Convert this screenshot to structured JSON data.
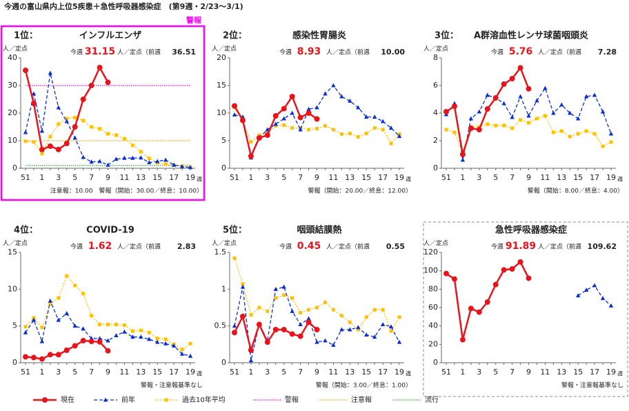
{
  "title": "今週の富山県内上位5疾患＋急性呼吸器感染症　(第9週・2/23～3/1)",
  "chart_data": [
    {
      "type": "line",
      "rank": "1位：",
      "title": "インフルエンザ",
      "status": "警報",
      "frame": "highlight",
      "this_week_label": "今週",
      "current": "31.15",
      "unit_note": "人／定点（前週",
      "previous": "36.51",
      "y_label": "人／定点",
      "x_unit": "週",
      "note": "注意報：10.00　警報（開始：30.00／終息：10.00）",
      "categories": [
        "51",
        null,
        "1",
        null,
        "3",
        null,
        "5",
        null,
        "7",
        null,
        "9",
        null,
        "11",
        null,
        "13",
        null,
        "15",
        null,
        "17",
        null,
        "19"
      ],
      "ylim": [
        0,
        40
      ],
      "yticks": [
        0,
        10,
        20,
        30,
        40
      ],
      "series": [
        {
          "name": "現在",
          "color": "#e8141b",
          "dash": "solid",
          "marker": "circle",
          "values": [
            35.5,
            23.5,
            6.8,
            8,
            6.8,
            9,
            15,
            25,
            30,
            36.51,
            31.15,
            null,
            null,
            null,
            null,
            null,
            null,
            null,
            null,
            null,
            null
          ]
        },
        {
          "name": "前年",
          "color": "#0a2fd0",
          "dash": "dashed",
          "marker": "triangle",
          "values": [
            13,
            27,
            13.5,
            34.5,
            22,
            17,
            11,
            4,
            2.3,
            2.5,
            1.2,
            3.3,
            3.7,
            3.7,
            3.8,
            2.1,
            2.5,
            3,
            1.2,
            0.6,
            0.3
          ]
        },
        {
          "name": "過去10年平均",
          "color": "#ffc000",
          "dash": "dotted",
          "marker": "square",
          "values": [
            9.8,
            9.5,
            5.3,
            11.5,
            16,
            18,
            18.4,
            17.3,
            15,
            14.3,
            12.5,
            12,
            10.7,
            8.3,
            6,
            3.6,
            2,
            1.5,
            1.2,
            0.8,
            0.4
          ]
        }
      ],
      "thresholds": [
        {
          "name": "警報",
          "value": 30,
          "color": "#ff00ff"
        },
        {
          "name": "注意報",
          "value": 10,
          "color": "#e0b000"
        },
        {
          "name": "流行",
          "value": 1,
          "color": "#33a02c"
        }
      ]
    },
    {
      "type": "line",
      "rank": "2位：",
      "title": "感染性胃腸炎",
      "this_week_label": "今週",
      "current": "8.93",
      "unit_note": "人／定点（前週",
      "previous": "10.00",
      "y_label": "人／定点",
      "x_unit": "週",
      "note": "警報（開始：20.00／終息：12.00）",
      "categories": [
        "51",
        null,
        "1",
        null,
        "3",
        null,
        "5",
        null,
        "7",
        null,
        "9",
        null,
        "11",
        null,
        "13",
        null,
        "15",
        null,
        "17",
        null,
        "19"
      ],
      "ylim": [
        0,
        20
      ],
      "yticks": [
        0,
        5,
        10,
        15,
        20
      ],
      "series": [
        {
          "name": "現在",
          "color": "#e8141b",
          "dash": "solid",
          "marker": "circle",
          "values": [
            11.3,
            8.7,
            2.2,
            5.5,
            6,
            9.5,
            10.8,
            13,
            9.2,
            10,
            8.93,
            null,
            null,
            null,
            null,
            null,
            null,
            null,
            null,
            null,
            null
          ]
        },
        {
          "name": "前年",
          "color": "#0a2fd0",
          "dash": "dashed",
          "marker": "triangle",
          "values": [
            9.7,
            9.3,
            1.9,
            5.5,
            7,
            8,
            9,
            10,
            7,
            10.7,
            11,
            13.5,
            15,
            13,
            12.2,
            11,
            9.3,
            9.3,
            8.5,
            7.3,
            5.8
          ]
        },
        {
          "name": "過去10年平均",
          "color": "#ffc000",
          "dash": "dotted",
          "marker": "square",
          "values": [
            11,
            8.5,
            4.8,
            6,
            6.5,
            7.7,
            7.8,
            7.3,
            7.3,
            7,
            7.2,
            7.7,
            7,
            6.2,
            6.3,
            5.7,
            6.3,
            7.3,
            7,
            4.5,
            6.2
          ]
        }
      ]
    },
    {
      "type": "line",
      "rank": "3位：",
      "title": "A群溶血性レンサ球菌咽頭炎",
      "this_week_label": "今週",
      "current": "5.76",
      "unit_note": "人／定点（前週",
      "previous": "7.28",
      "y_label": "人／定点",
      "x_unit": "週",
      "note": "警報（開始：8.00／終息：4.00）",
      "categories": [
        "51",
        null,
        "1",
        null,
        "3",
        null,
        "5",
        null,
        "7",
        null,
        "9",
        null,
        "11",
        null,
        "13",
        null,
        "15",
        null,
        "17",
        null,
        "19"
      ],
      "ylim": [
        0,
        8
      ],
      "yticks": [
        0,
        2,
        4,
        6,
        8
      ],
      "series": [
        {
          "name": "現在",
          "color": "#e8141b",
          "dash": "solid",
          "marker": "circle",
          "values": [
            4.1,
            4.5,
            1,
            2.9,
            2.8,
            4.3,
            5.1,
            6.1,
            6.5,
            7.28,
            5.76,
            null,
            null,
            null,
            null,
            null,
            null,
            null,
            null,
            null,
            null
          ]
        },
        {
          "name": "前年",
          "color": "#0a2fd0",
          "dash": "dashed",
          "marker": "triangle",
          "values": [
            3.9,
            4.7,
            0.6,
            3.6,
            4.1,
            5.3,
            5.1,
            4.7,
            3.7,
            5.2,
            3.8,
            4.9,
            5.8,
            4,
            4.6,
            4,
            3.6,
            5.2,
            5.3,
            4.1,
            2.5
          ]
        },
        {
          "name": "過去10年平均",
          "color": "#ffc000",
          "dash": "dotted",
          "marker": "square",
          "values": [
            2.8,
            2.6,
            1.2,
            3,
            3,
            3.2,
            3.1,
            3.1,
            2.9,
            3.5,
            3.3,
            3.6,
            3.8,
            2.6,
            2.7,
            2.3,
            2.5,
            2.7,
            2.5,
            1.6,
            1.9
          ]
        }
      ]
    },
    {
      "type": "line",
      "rank": "4位：",
      "title": "COVID-19",
      "this_week_label": "今週",
      "current": "1.62",
      "unit_note": "人／定点（前週",
      "previous": "2.83",
      "y_label": "人／定点",
      "x_unit": "週",
      "note": "警報・注意報基準なし",
      "categories": [
        "51",
        null,
        "1",
        null,
        "3",
        null,
        "5",
        null,
        "7",
        null,
        "9",
        null,
        "11",
        null,
        "13",
        null,
        "15",
        null,
        "17",
        null,
        "19"
      ],
      "ylim": [
        0,
        15
      ],
      "yticks": [
        0,
        5,
        10,
        15
      ],
      "series": [
        {
          "name": "現在",
          "color": "#e8141b",
          "dash": "solid",
          "marker": "circle",
          "values": [
            0.8,
            0.7,
            0.5,
            1.1,
            1.1,
            1.7,
            2.3,
            3,
            2.9,
            2.83,
            1.62,
            null,
            null,
            null,
            null,
            null,
            null,
            null,
            null,
            null,
            null
          ]
        },
        {
          "name": "前年",
          "color": "#0a2fd0",
          "dash": "dashed",
          "marker": "triangle",
          "values": [
            4.1,
            5.8,
            2.9,
            8.4,
            5.8,
            6.7,
            5,
            4.6,
            3.3,
            3.3,
            3,
            3.7,
            4.2,
            3.5,
            3.5,
            3.2,
            2.8,
            2.6,
            2.3,
            1.2,
            0.9
          ]
        },
        {
          "name": "過去10年平均",
          "color": "#ffc000",
          "dash": "dotted",
          "marker": "square",
          "values": [
            4.9,
            6.1,
            4.8,
            8,
            8.8,
            11.8,
            10.5,
            9.4,
            6.4,
            5.2,
            5.2,
            5.2,
            5.1,
            4.3,
            4.4,
            4.1,
            3.3,
            3.2,
            2.5,
            1.8,
            2.6
          ]
        }
      ]
    },
    {
      "type": "line",
      "rank": "5位：",
      "title": "咽頭結膜熱",
      "this_week_label": "今週",
      "current": "0.45",
      "unit_note": "人／定点（前週",
      "previous": "0.55",
      "y_label": "人／定点",
      "x_unit": "週",
      "note": "警報（開始：3.00／終息：1.00）",
      "categories": [
        "51",
        null,
        "1",
        null,
        "3",
        null,
        "5",
        null,
        "7",
        null,
        "9",
        null,
        "11",
        null,
        "13",
        null,
        "15",
        null,
        "17",
        null,
        "19"
      ],
      "ylim": [
        0,
        1.5
      ],
      "yticks": [
        0,
        0.5,
        1,
        1.5
      ],
      "series": [
        {
          "name": "現在",
          "color": "#e8141b",
          "dash": "solid",
          "marker": "circle",
          "values": [
            0.41,
            0.63,
            0.17,
            0.52,
            0.28,
            0.45,
            0.45,
            0.39,
            0.36,
            0.55,
            0.45,
            null,
            null,
            null,
            null,
            null,
            null,
            null,
            null,
            null,
            null
          ]
        },
        {
          "name": "前年",
          "color": "#0a2fd0",
          "dash": "dashed",
          "marker": "triangle",
          "values": [
            0.5,
            1.03,
            0.03,
            0.53,
            0.3,
            1,
            1.03,
            0.7,
            0.52,
            0.6,
            0.28,
            0.3,
            0.24,
            0.45,
            0.45,
            0.48,
            0.38,
            0.35,
            0.52,
            0.49,
            0.28
          ]
        },
        {
          "name": "過去10年平均",
          "color": "#ffc000",
          "dash": "dotted",
          "marker": "square",
          "values": [
            1.42,
            1.07,
            0.65,
            0.75,
            0.7,
            0.88,
            0.92,
            0.88,
            0.68,
            0.72,
            0.75,
            0.82,
            0.72,
            0.64,
            0.55,
            0.45,
            0.62,
            0.72,
            0.72,
            0.43,
            0.62
          ]
        }
      ]
    },
    {
      "type": "line",
      "title": "急性呼吸器感染症",
      "frame": "dashed",
      "this_week_label": "今週",
      "current": "91.89",
      "unit_note": "人／定点（前週",
      "previous": "109.62",
      "y_label": "人／定点",
      "x_unit": "週",
      "note": "警報・注意報基準なし",
      "categories": [
        "51",
        null,
        "1",
        null,
        "3",
        null,
        "5",
        null,
        "7",
        null,
        "9",
        null,
        "11",
        null,
        "13",
        null,
        "15",
        null,
        "17",
        null,
        "19"
      ],
      "ylim": [
        0,
        120
      ],
      "yticks": [
        0,
        20,
        40,
        60,
        80,
        100,
        120
      ],
      "series": [
        {
          "name": "現在",
          "color": "#e8141b",
          "dash": "solid",
          "marker": "circle",
          "values": [
            97,
            91,
            25,
            59,
            55,
            66,
            85,
            101,
            102,
            109.62,
            91.89,
            null,
            null,
            null,
            null,
            null,
            null,
            null,
            null,
            null,
            null
          ]
        },
        {
          "name": "前年",
          "color": "#0a2fd0",
          "dash": "dashed",
          "marker": "triangle",
          "values": [
            null,
            null,
            null,
            null,
            null,
            null,
            null,
            null,
            null,
            null,
            null,
            null,
            null,
            null,
            null,
            null,
            73,
            79,
            84,
            70,
            62
          ]
        }
      ]
    }
  ]
}
